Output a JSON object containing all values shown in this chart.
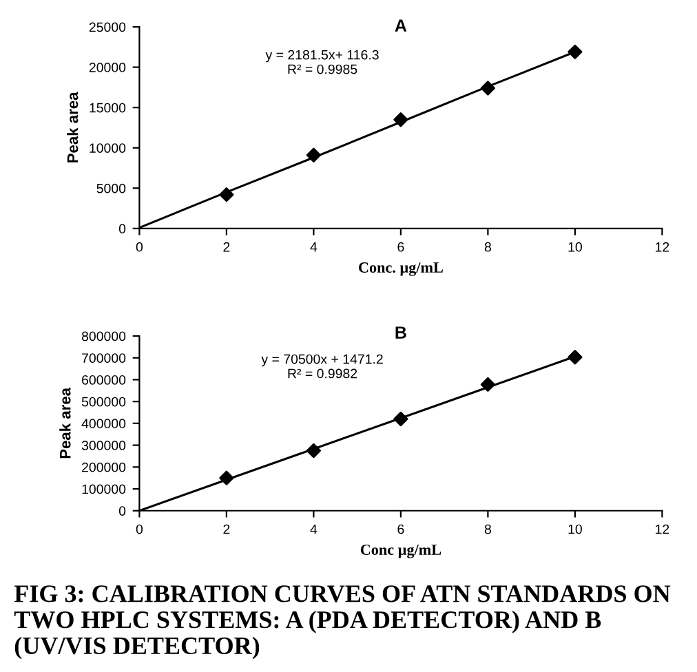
{
  "chart_data": [
    {
      "type": "scatter",
      "title": "A",
      "xlabel": "Conc. µg/mL",
      "ylabel": "Peak area",
      "grid": false,
      "legend": false,
      "xlim": [
        0,
        12
      ],
      "xticks": [
        0,
        2,
        4,
        6,
        8,
        10,
        12
      ],
      "ylim": [
        0,
        25000
      ],
      "yticks": [
        0,
        5000,
        10000,
        15000,
        20000,
        25000
      ],
      "x": [
        2,
        4,
        6,
        8,
        10
      ],
      "series": [
        {
          "color": "#000000",
          "marker": "diamond",
          "values": [
            4200,
            9100,
            13500,
            17400,
            21900
          ]
        },
        {
          "type": "line",
          "color": "#000000",
          "marker": "none",
          "x": [
            0,
            2,
            4,
            6,
            8,
            10
          ],
          "values": [
            100,
            4500,
            8800,
            13200,
            17600,
            21900
          ]
        }
      ],
      "annotations": [
        "y = 2181.5x+ 116.3\nR² = 0.9985"
      ]
    },
    {
      "type": "scatter",
      "title": "B",
      "xlabel": "Conc µg/mL",
      "ylabel": "Peak area",
      "grid": false,
      "legend": false,
      "xlim": [
        0,
        12
      ],
      "xticks": [
        0,
        2,
        4,
        6,
        8,
        10,
        12
      ],
      "ylim": [
        0,
        800000
      ],
      "yticks": [
        0,
        100000,
        200000,
        300000,
        400000,
        500000,
        600000,
        700000,
        800000
      ],
      "x": [
        2,
        4,
        6,
        8,
        10
      ],
      "series": [
        {
          "color": "#000000",
          "marker": "diamond",
          "values": [
            150000,
            275000,
            420000,
            578000,
            703000
          ]
        },
        {
          "type": "line",
          "color": "#000000",
          "marker": "none",
          "x": [
            0,
            2,
            4,
            6,
            8,
            10
          ],
          "values": [
            0,
            142000,
            283000,
            424000,
            565000,
            706000
          ]
        }
      ],
      "annotations": [
        "y = 70500x + 1471.2\nR² = 0.9982",
        "FIG 3: CALIBRATION CURVES OF ATN STANDARDS ON TWO HPLC SYSTEMS: A (PDA DETECTOR) AND B (UV/VIS DETECTOR)"
      ]
    }
  ]
}
